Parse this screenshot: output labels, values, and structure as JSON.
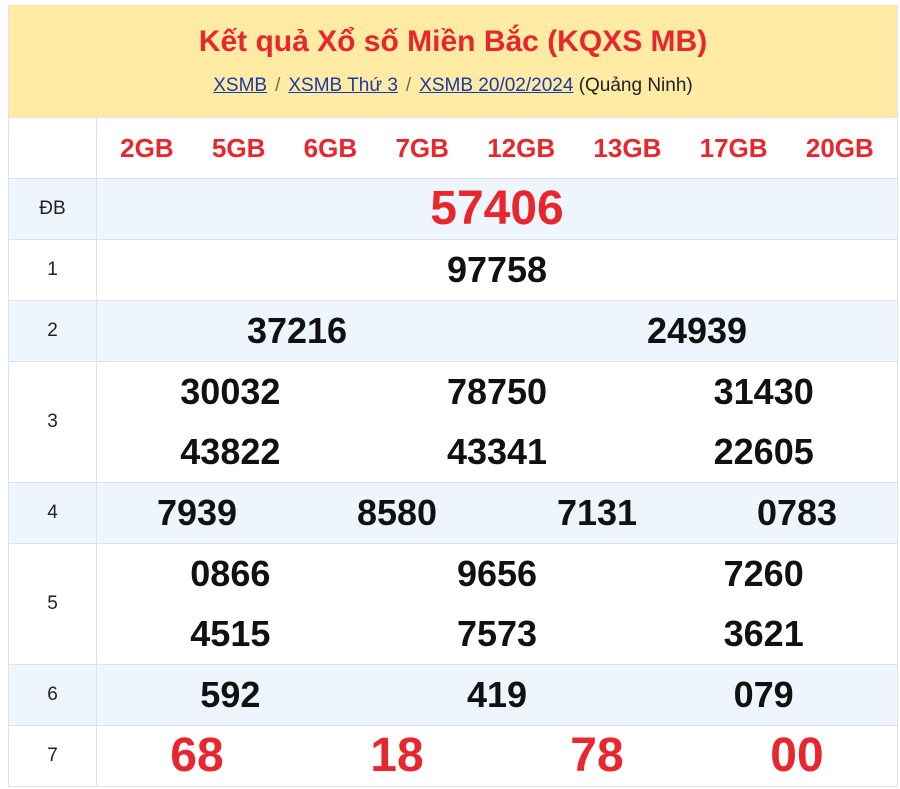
{
  "header": {
    "title": "Kết quả Xổ số Miền Bắc (KQXS MB)",
    "breadcrumb": [
      {
        "label": "XSMB"
      },
      {
        "label": "XSMB Thứ 3"
      },
      {
        "label": "XSMB 20/02/2024"
      }
    ],
    "province": "(Quảng Ninh)",
    "separator": "/"
  },
  "codes": [
    "2GB",
    "5GB",
    "6GB",
    "7GB",
    "12GB",
    "13GB",
    "17GB",
    "20GB"
  ],
  "prizes": [
    {
      "label": "ĐB",
      "rows": [
        [
          "57406"
        ]
      ]
    },
    {
      "label": "1",
      "rows": [
        [
          "97758"
        ]
      ]
    },
    {
      "label": "2",
      "rows": [
        [
          "37216",
          "24939"
        ]
      ]
    },
    {
      "label": "3",
      "rows": [
        [
          "30032",
          "78750",
          "31430"
        ],
        [
          "43822",
          "43341",
          "22605"
        ]
      ]
    },
    {
      "label": "4",
      "rows": [
        [
          "7939",
          "8580",
          "7131",
          "0783"
        ]
      ]
    },
    {
      "label": "5",
      "rows": [
        [
          "0866",
          "9656",
          "7260"
        ],
        [
          "4515",
          "7573",
          "3621"
        ]
      ]
    },
    {
      "label": "6",
      "rows": [
        [
          "592",
          "419",
          "079"
        ]
      ]
    },
    {
      "label": "7",
      "rows": [
        [
          "68",
          "18",
          "78",
          "00"
        ]
      ]
    }
  ],
  "colors": {
    "accent": "#e8262d",
    "header_bg": "#ffeba3",
    "alt_row": "#eef5fd",
    "link": "#1a3aa8"
  }
}
